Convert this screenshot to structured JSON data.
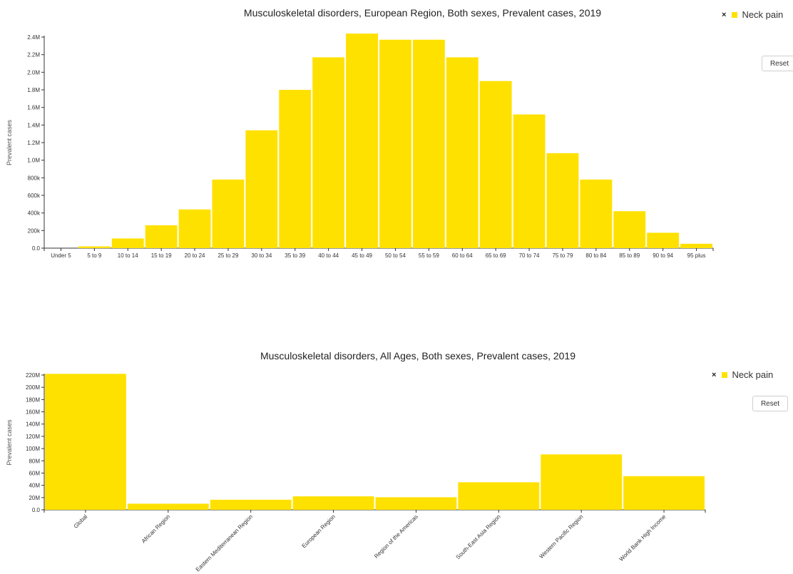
{
  "charts": [
    {
      "title": "Musculoskeletal disorders, European Region, Both sexes, Prevalent cases, 2019",
      "legend": {
        "close_glyph": "×",
        "label": "Neck pain"
      },
      "reset_label": "Reset"
    },
    {
      "title": "Musculoskeletal disorders, All Ages, Both sexes, Prevalent cases, 2019",
      "legend": {
        "close_glyph": "×",
        "label": "Neck pain"
      },
      "reset_label": "Reset"
    }
  ],
  "colors": {
    "bar": "#FFE100",
    "axis": "#333333"
  },
  "chart_data": [
    {
      "type": "bar",
      "title": "Musculoskeletal disorders, European Region, Both sexes, Prevalent cases, 2019",
      "xlabel": "",
      "ylabel": "Prevalent cases",
      "ylim": [
        0,
        2400000
      ],
      "yticks": [
        0,
        200000,
        400000,
        600000,
        800000,
        1000000,
        1200000,
        1400000,
        1600000,
        1800000,
        2000000,
        2200000,
        2400000
      ],
      "ytick_labels": [
        "0.0",
        "200k",
        "400k",
        "600k",
        "800k",
        "1.0M",
        "1.2M",
        "1.4M",
        "1.6M",
        "1.8M",
        "2.0M",
        "2.2M",
        "2.4M"
      ],
      "categories": [
        "Under 5",
        "5 to 9",
        "10 to 14",
        "15 to 19",
        "20 to 24",
        "25 to 29",
        "30 to 34",
        "35 to 39",
        "40 to 44",
        "45 to 49",
        "50 to 54",
        "55 to 59",
        "60 to 64",
        "65 to 69",
        "70 to 74",
        "75 to 79",
        "80 to 84",
        "85 to 89",
        "90 to 94",
        "95 plus"
      ],
      "series": [
        {
          "name": "Neck pain",
          "values": [
            0,
            20000,
            110000,
            260000,
            440000,
            780000,
            1340000,
            1800000,
            2170000,
            2440000,
            2370000,
            2370000,
            2170000,
            1900000,
            1520000,
            1080000,
            780000,
            420000,
            175000,
            50000
          ]
        }
      ],
      "grid": false,
      "legend_position": "top-right"
    },
    {
      "type": "bar",
      "title": "Musculoskeletal disorders, All Ages, Both sexes, Prevalent cases, 2019",
      "xlabel": "",
      "ylabel": "Prevalent cases",
      "ylim": [
        0,
        220000000
      ],
      "yticks": [
        0,
        20000000,
        40000000,
        60000000,
        80000000,
        100000000,
        120000000,
        140000000,
        160000000,
        180000000,
        200000000,
        220000000
      ],
      "ytick_labels": [
        "0.0",
        "20M",
        "40M",
        "60M",
        "80M",
        "100M",
        "120M",
        "140M",
        "160M",
        "180M",
        "200M",
        "220M"
      ],
      "categories": [
        "Global",
        "African Region",
        "Eastern Mediterranean Region",
        "European Region",
        "Region of the Americas",
        "South-East Asia Region",
        "Western Pacific Region",
        "World Bank High Income"
      ],
      "series": [
        {
          "name": "Neck pain",
          "values": [
            222000000,
            10000000,
            16500000,
            22000000,
            20500000,
            45000000,
            90500000,
            55000000
          ]
        }
      ],
      "grid": false,
      "legend_position": "top-right"
    }
  ]
}
